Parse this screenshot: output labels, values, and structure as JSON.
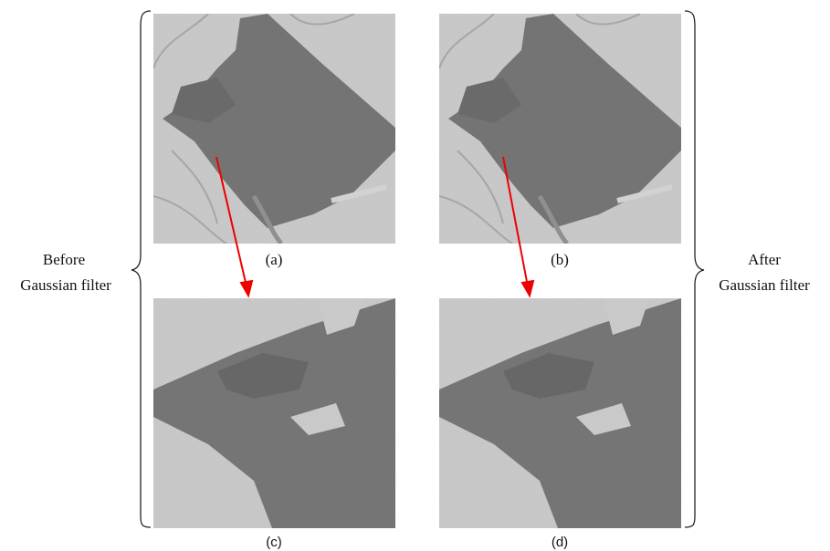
{
  "panels": [
    {
      "label": "(a)"
    },
    {
      "label": "(b)"
    },
    {
      "label": "(c)"
    },
    {
      "label": "(d)"
    }
  ],
  "left_label": {
    "lines": [
      "Before",
      "Gaussian filter"
    ]
  },
  "right_label": {
    "lines": [
      "After",
      "Gaussian filter"
    ]
  }
}
